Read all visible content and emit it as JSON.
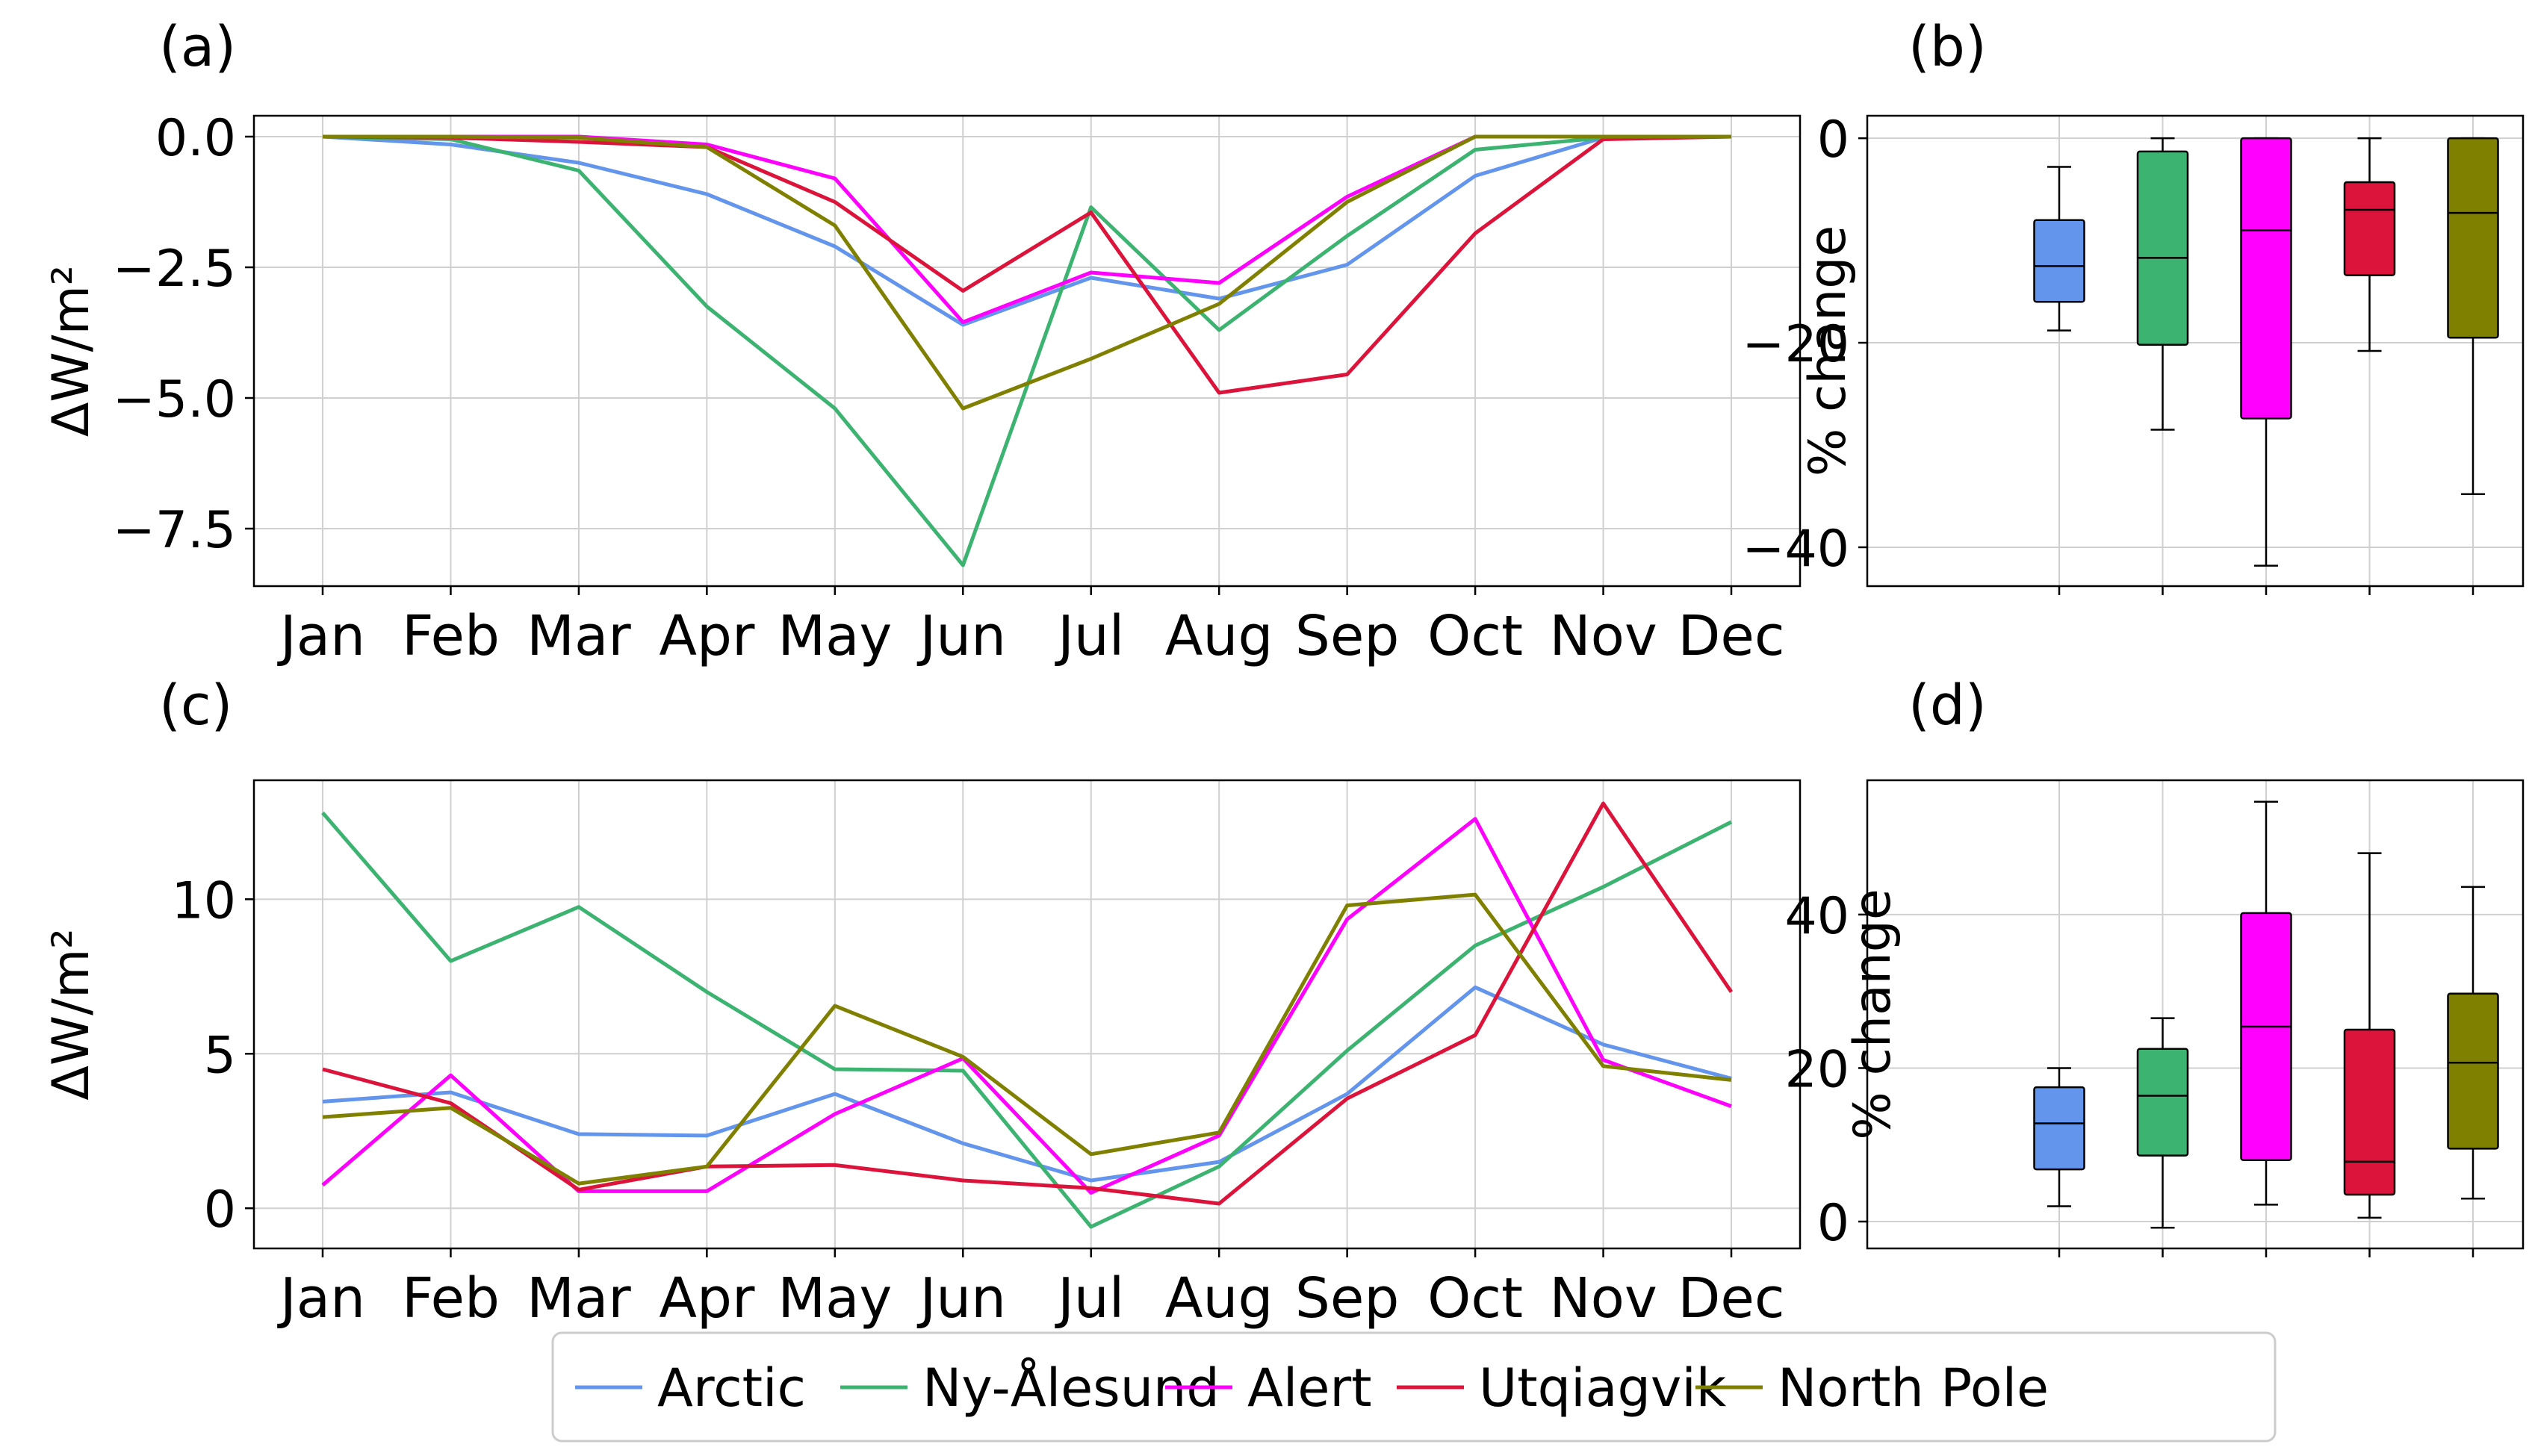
{
  "months": [
    "Jan",
    "Feb",
    "Mar",
    "Apr",
    "May",
    "Jun",
    "Jul",
    "Aug",
    "Sep",
    "Oct",
    "Nov",
    "Dec"
  ],
  "series_styles": [
    {
      "name": "Arctic",
      "color": "#6495ED"
    },
    {
      "name": "Ny-Ålesund",
      "color": "#3CB371"
    },
    {
      "name": "Alert",
      "color": "#FF00FF"
    },
    {
      "name": "Utqiagvik",
      "color": "#DC143C"
    },
    {
      "name": "North Pole",
      "color": "#808000"
    }
  ],
  "chart_data": [
    {
      "panel": "(a)",
      "type": "line",
      "categories": [
        "Jan",
        "Feb",
        "Mar",
        "Apr",
        "May",
        "Jun",
        "Jul",
        "Aug",
        "Sep",
        "Oct",
        "Nov",
        "Dec"
      ],
      "ylabel": "ΔW/m²",
      "ylim": [
        -8.6,
        0.4
      ],
      "yticks": [
        0.0,
        -2.5,
        -5.0,
        -7.5
      ],
      "ytick_labels": [
        "0.0",
        "−2.5",
        "−5.0",
        "−7.5"
      ],
      "grid": true,
      "series": [
        {
          "name": "Arctic",
          "values": [
            0,
            -0.15,
            -0.5,
            -1.1,
            -2.1,
            -3.6,
            -2.7,
            -3.1,
            -2.45,
            -0.75,
            -0.02,
            0
          ]
        },
        {
          "name": "Ny-Ålesund",
          "values": [
            0,
            -0.05,
            -0.65,
            -3.25,
            -5.2,
            -8.2,
            -1.35,
            -3.7,
            -1.9,
            -0.25,
            -0.02,
            0
          ]
        },
        {
          "name": "Alert",
          "values": [
            0,
            0,
            0,
            -0.15,
            -0.8,
            -3.55,
            -2.6,
            -2.8,
            -1.15,
            0,
            0,
            0
          ]
        },
        {
          "name": "Utqiagvik",
          "values": [
            0,
            -0.02,
            -0.1,
            -0.2,
            -1.25,
            -2.95,
            -1.45,
            -4.9,
            -4.55,
            -1.85,
            -0.05,
            0
          ]
        },
        {
          "name": "North Pole",
          "values": [
            0,
            0,
            -0.02,
            -0.2,
            -1.7,
            -5.2,
            -4.25,
            -3.2,
            -1.25,
            0,
            0,
            0
          ]
        }
      ]
    },
    {
      "panel": "(b)",
      "type": "box",
      "ylabel": "% change",
      "ylim": [
        -43.8,
        2.2
      ],
      "yticks": [
        0,
        -20,
        -40
      ],
      "ytick_labels": [
        "0",
        "−20",
        "−40"
      ],
      "grid": true,
      "boxes": [
        {
          "name": "Arctic",
          "whisker_low": -18.8,
          "q1": -16.0,
          "median": -12.5,
          "q3": -8.0,
          "whisker_high": -2.8
        },
        {
          "name": "Ny-Ålesund",
          "whisker_low": -28.5,
          "q1": -20.2,
          "median": -11.7,
          "q3": -1.3,
          "whisker_high": 0
        },
        {
          "name": "Alert",
          "whisker_low": -41.8,
          "q1": -27.4,
          "median": -9.0,
          "q3": 0,
          "whisker_high": 0
        },
        {
          "name": "Utqiagvik",
          "whisker_low": -20.8,
          "q1": -13.4,
          "median": -7.0,
          "q3": -4.3,
          "whisker_high": 0
        },
        {
          "name": "North Pole",
          "whisker_low": -34.8,
          "q1": -19.5,
          "median": -7.3,
          "q3": 0,
          "whisker_high": 0
        }
      ]
    },
    {
      "panel": "(c)",
      "type": "line",
      "categories": [
        "Jan",
        "Feb",
        "Mar",
        "Apr",
        "May",
        "Jun",
        "Jul",
        "Aug",
        "Sep",
        "Oct",
        "Nov",
        "Dec"
      ],
      "ylabel": "ΔW/m²",
      "ylim": [
        -1.3,
        13.85
      ],
      "yticks": [
        0,
        5,
        10
      ],
      "ytick_labels": [
        "0",
        "5",
        "10"
      ],
      "grid": true,
      "series": [
        {
          "name": "Arctic",
          "values": [
            3.45,
            3.75,
            2.4,
            2.35,
            3.7,
            2.1,
            0.9,
            1.5,
            3.7,
            7.15,
            5.3,
            4.2
          ]
        },
        {
          "name": "Ny-Ålesund",
          "values": [
            12.8,
            8.0,
            9.75,
            7.0,
            4.5,
            4.45,
            -0.6,
            1.35,
            5.1,
            8.5,
            10.4,
            12.5
          ]
        },
        {
          "name": "Alert",
          "values": [
            0.75,
            4.3,
            0.55,
            0.55,
            3.05,
            4.85,
            0.5,
            2.35,
            9.35,
            12.6,
            4.8,
            3.3
          ]
        },
        {
          "name": "Utqiagvik",
          "values": [
            4.5,
            3.4,
            0.6,
            1.35,
            1.4,
            0.9,
            0.65,
            0.15,
            3.55,
            5.6,
            13.1,
            7.0
          ]
        },
        {
          "name": "North Pole",
          "values": [
            2.95,
            3.25,
            0.8,
            1.35,
            6.55,
            4.9,
            1.75,
            2.45,
            9.8,
            10.15,
            4.6,
            4.15
          ]
        }
      ]
    },
    {
      "panel": "(d)",
      "type": "box",
      "ylabel": "% change",
      "ylim": [
        -3.5,
        57.5
      ],
      "yticks": [
        0,
        20,
        40
      ],
      "ytick_labels": [
        "0",
        "20",
        "40"
      ],
      "grid": true,
      "boxes": [
        {
          "name": "Arctic",
          "whisker_low": 2.0,
          "q1": 6.8,
          "median": 12.8,
          "q3": 17.5,
          "whisker_high": 20.0
        },
        {
          "name": "Ny-Ålesund",
          "whisker_low": -0.8,
          "q1": 8.6,
          "median": 16.4,
          "q3": 22.5,
          "whisker_high": 26.5
        },
        {
          "name": "Alert",
          "whisker_low": 2.2,
          "q1": 8.0,
          "median": 25.4,
          "q3": 40.2,
          "whisker_high": 54.7
        },
        {
          "name": "Utqiagvik",
          "whisker_low": 0.5,
          "q1": 3.5,
          "median": 7.8,
          "q3": 25.0,
          "whisker_high": 48.0
        },
        {
          "name": "North Pole",
          "whisker_low": 3.0,
          "q1": 9.5,
          "median": 20.7,
          "q3": 29.7,
          "whisker_high": 43.6
        }
      ]
    }
  ]
}
